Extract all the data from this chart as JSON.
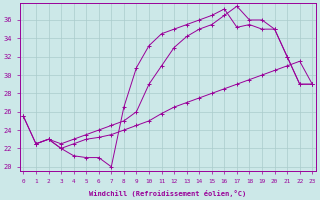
{
  "xlabel": "Windchill (Refroidissement éolien,°C)",
  "bg_color": "#cce8e8",
  "line_color": "#990099",
  "grid_color": "#aacccc",
  "x_ticks": [
    0,
    1,
    2,
    3,
    4,
    5,
    6,
    7,
    8,
    9,
    10,
    11,
    12,
    13,
    14,
    15,
    16,
    17,
    18,
    19,
    20,
    21,
    22,
    23
  ],
  "y_ticks": [
    20,
    22,
    24,
    26,
    28,
    30,
    32,
    34,
    36
  ],
  "xlim": [
    -0.3,
    23.3
  ],
  "ylim": [
    19.5,
    37.8
  ],
  "line1_x": [
    0,
    1,
    2,
    3,
    4,
    5,
    6,
    7,
    8,
    9,
    10,
    11,
    12,
    13,
    14,
    15,
    16,
    17,
    18,
    19,
    20,
    21,
    22,
    23
  ],
  "line1_y": [
    25.5,
    22.5,
    23.0,
    22.0,
    21.2,
    21.0,
    21.0,
    20.0,
    26.5,
    30.8,
    33.2,
    34.5,
    35.0,
    35.5,
    36.0,
    36.5,
    37.2,
    35.2,
    35.5,
    35.0,
    35.0,
    32.0,
    29.0,
    29.0
  ],
  "line2_x": [
    0,
    1,
    2,
    3,
    4,
    5,
    6,
    7,
    8,
    9,
    10,
    11,
    12,
    13,
    14,
    15,
    16,
    17,
    18,
    19,
    20,
    21,
    22,
    23
  ],
  "line2_y": [
    25.5,
    22.5,
    23.0,
    22.5,
    23.0,
    23.5,
    24.0,
    24.5,
    25.0,
    26.0,
    29.0,
    31.0,
    33.0,
    34.2,
    35.0,
    35.5,
    36.5,
    37.5,
    36.0,
    36.0,
    35.0,
    32.0,
    29.0,
    29.0
  ],
  "line3_x": [
    1,
    2,
    3,
    4,
    5,
    6,
    7,
    8,
    9,
    10,
    11,
    12,
    13,
    14,
    15,
    16,
    17,
    18,
    19,
    20,
    21,
    22,
    23
  ],
  "line3_y": [
    22.5,
    23.0,
    22.0,
    22.5,
    23.0,
    23.2,
    23.5,
    24.0,
    24.5,
    25.0,
    25.8,
    26.5,
    27.0,
    27.5,
    28.0,
    28.5,
    29.0,
    29.5,
    30.0,
    30.5,
    31.0,
    31.5,
    29.0
  ]
}
